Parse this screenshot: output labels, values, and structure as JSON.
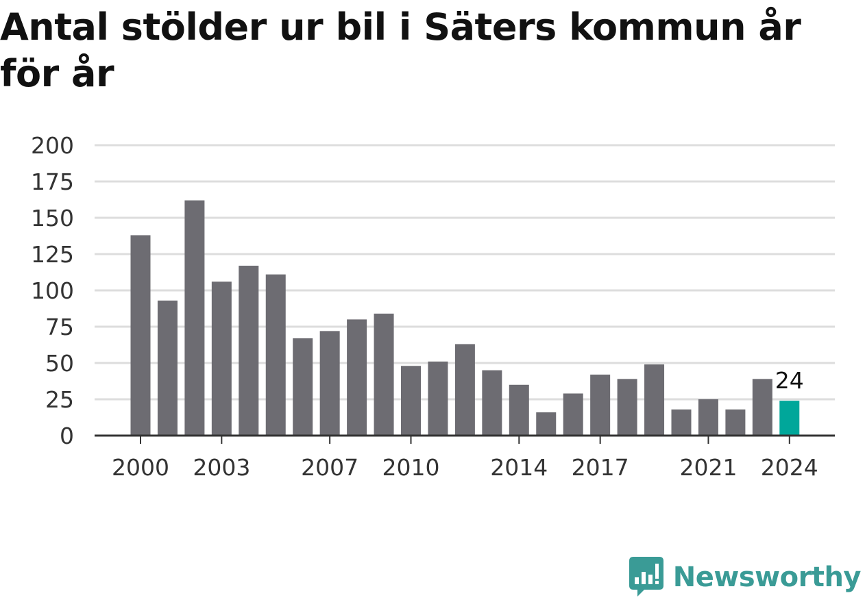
{
  "title": "Antal stölder ur bil i Säters kommun år för år",
  "brand": {
    "name": "Newsworthy",
    "color": "#3a9b96"
  },
  "colors": {
    "bar": "#6d6c72",
    "highlight": "#00a79a",
    "grid": "#dddddd",
    "axis": "#333333"
  },
  "chart_data": {
    "type": "bar",
    "title": "Antal stölder ur bil i Säters kommun år för år",
    "xlabel": "",
    "ylabel": "",
    "ylim": [
      0,
      200
    ],
    "yticks": [
      0,
      25,
      50,
      75,
      100,
      125,
      150,
      175,
      200
    ],
    "xticks": [
      "2000",
      "2003",
      "2007",
      "2010",
      "2014",
      "2017",
      "2021",
      "2024"
    ],
    "grid": true,
    "categories": [
      "2000",
      "2001",
      "2002",
      "2003",
      "2004",
      "2005",
      "2006",
      "2007",
      "2008",
      "2009",
      "2010",
      "2011",
      "2012",
      "2013",
      "2014",
      "2015",
      "2016",
      "2017",
      "2018",
      "2019",
      "2020",
      "2021",
      "2022",
      "2023",
      "2024"
    ],
    "values": [
      138,
      93,
      162,
      106,
      117,
      111,
      67,
      72,
      80,
      84,
      48,
      51,
      63,
      45,
      35,
      16,
      29,
      42,
      39,
      49,
      18,
      25,
      18,
      39,
      24
    ],
    "highlight": {
      "category": "2024",
      "label": "24"
    }
  }
}
